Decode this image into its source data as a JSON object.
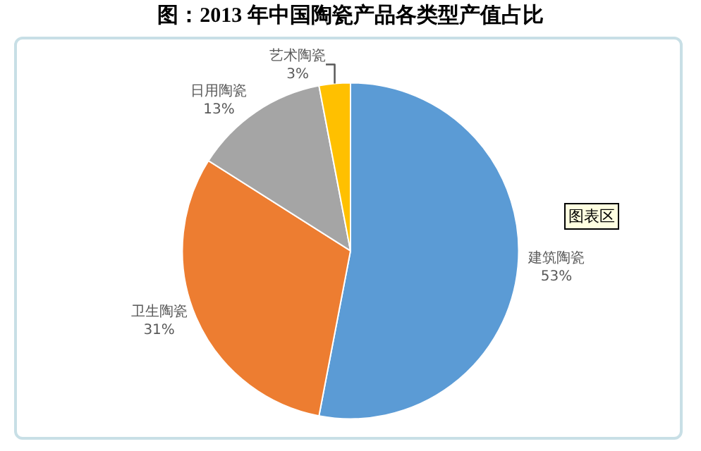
{
  "chart_data": {
    "type": "pie",
    "title": "图：2013 年中国陶瓷产品各类型产值占比",
    "categories": [
      "建筑陶瓷",
      "卫生陶瓷",
      "日用陶瓷",
      "艺术陶瓷"
    ],
    "values": [
      53,
      31,
      13,
      3
    ],
    "colors": [
      "#5b9bd5",
      "#ed7d31",
      "#a5a5a5",
      "#ffc000"
    ],
    "value_labels": [
      "53%",
      "31%",
      "13%",
      "3%"
    ],
    "annotations": [
      "图表区"
    ],
    "legend": false
  }
}
